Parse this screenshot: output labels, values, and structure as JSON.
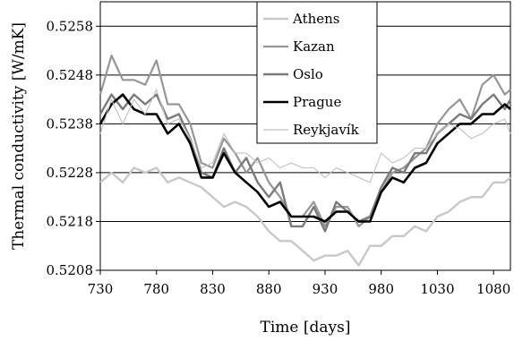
{
  "chart_data": {
    "type": "line",
    "title": "",
    "xlabel": "Time [days]",
    "ylabel": "Thermal conductivity [W/mK]",
    "xlim": [
      730,
      1095
    ],
    "ylim": [
      0.5208,
      0.5263
    ],
    "xticks": [
      "730",
      "780",
      "830",
      "880",
      "930",
      "980",
      "1030",
      "1080"
    ],
    "yticks": [
      "0.5208",
      "0.5218",
      "0.5228",
      "0.5238",
      "0.5248",
      "0.5258"
    ],
    "grid": "horizontal",
    "legend_position": "top-center",
    "x": [
      730,
      740,
      750,
      760,
      770,
      780,
      790,
      800,
      810,
      820,
      830,
      840,
      850,
      860,
      870,
      880,
      890,
      900,
      910,
      920,
      930,
      940,
      950,
      960,
      970,
      980,
      990,
      1000,
      1010,
      1020,
      1030,
      1040,
      1050,
      1060,
      1070,
      1080,
      1090,
      1095
    ],
    "series": [
      {
        "name": "Athens",
        "color": "#c8c8c8",
        "width": 2.4,
        "values": [
          0.5226,
          0.5228,
          0.5226,
          0.5229,
          0.5228,
          0.5229,
          0.5226,
          0.5227,
          0.5226,
          0.5225,
          0.5223,
          0.5221,
          0.5222,
          0.5221,
          0.5219,
          0.5216,
          0.5214,
          0.5214,
          0.5212,
          0.521,
          0.5211,
          0.5211,
          0.5212,
          0.5209,
          0.5213,
          0.5213,
          0.5215,
          0.5215,
          0.5217,
          0.5216,
          0.5219,
          0.522,
          0.5222,
          0.5223,
          0.5223,
          0.5226,
          0.5226,
          0.5227
        ]
      },
      {
        "name": "Kazan",
        "color": "#969696",
        "width": 2.2,
        "values": [
          0.5244,
          0.5252,
          0.5247,
          0.5247,
          0.5246,
          0.5251,
          0.5242,
          0.5242,
          0.5238,
          0.523,
          0.5229,
          0.5235,
          0.5232,
          0.5228,
          0.5231,
          0.5226,
          0.5223,
          0.5219,
          0.5219,
          0.5222,
          0.5217,
          0.5221,
          0.5221,
          0.5217,
          0.5219,
          0.5224,
          0.5228,
          0.5229,
          0.5231,
          0.5233,
          0.5238,
          0.5241,
          0.5243,
          0.5239,
          0.5246,
          0.5248,
          0.5244,
          0.5245
        ]
      },
      {
        "name": "Oslo",
        "color": "#7a7a7a",
        "width": 2.4,
        "values": [
          0.524,
          0.5244,
          0.5241,
          0.5244,
          0.5242,
          0.5244,
          0.5239,
          0.524,
          0.5235,
          0.5228,
          0.5227,
          0.5233,
          0.5228,
          0.5231,
          0.5226,
          0.5223,
          0.5226,
          0.5217,
          0.5217,
          0.5221,
          0.5216,
          0.5222,
          0.522,
          0.5218,
          0.5219,
          0.5225,
          0.5229,
          0.5228,
          0.5232,
          0.5232,
          0.5236,
          0.5238,
          0.524,
          0.5239,
          0.5242,
          0.5244,
          0.5241,
          0.5243
        ]
      },
      {
        "name": "Prague",
        "color": "#000000",
        "width": 2.6,
        "values": [
          0.5238,
          0.5242,
          0.5244,
          0.5241,
          0.524,
          0.524,
          0.5236,
          0.5238,
          0.5234,
          0.5227,
          0.5227,
          0.5232,
          0.5228,
          0.5226,
          0.5224,
          0.5221,
          0.5222,
          0.5219,
          0.5219,
          0.5219,
          0.5218,
          0.522,
          0.522,
          0.5218,
          0.5218,
          0.5224,
          0.5227,
          0.5226,
          0.5229,
          0.523,
          0.5234,
          0.5236,
          0.5238,
          0.5238,
          0.524,
          0.524,
          0.5242,
          0.5241
        ]
      },
      {
        "name": "Reykjavík",
        "color": "#c0c0c0",
        "width": 1.1,
        "values": [
          0.5236,
          0.5243,
          0.5238,
          0.5243,
          0.524,
          0.5245,
          0.5238,
          0.5239,
          0.5235,
          0.5229,
          0.523,
          0.5236,
          0.5232,
          0.5232,
          0.523,
          0.5231,
          0.5229,
          0.523,
          0.5229,
          0.5229,
          0.5227,
          0.5229,
          0.5228,
          0.5227,
          0.5226,
          0.5232,
          0.523,
          0.5231,
          0.5233,
          0.5233,
          0.5236,
          0.5238,
          0.5237,
          0.5235,
          0.5236,
          0.5238,
          0.5239,
          0.5236
        ]
      }
    ]
  }
}
